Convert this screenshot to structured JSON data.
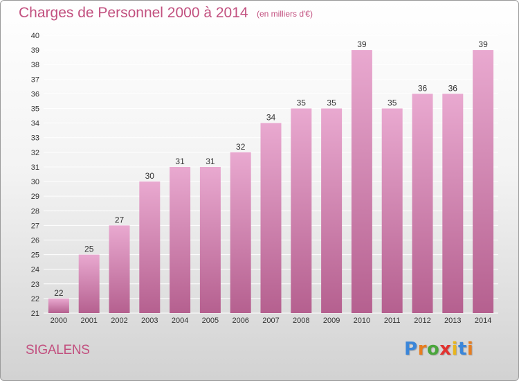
{
  "header": {
    "title": "Charges de Personnel 2000 à 2014",
    "subtitle": "(en milliers d'€)"
  },
  "footer": {
    "place": "SIGALENS",
    "logo": {
      "text": "Proxiti",
      "letter_colors": [
        "#3b86d9",
        "#e87d1e",
        "#4aa63c",
        "#e2322f",
        "#e8b51e",
        "#3b86d9",
        "#e87d1e"
      ]
    }
  },
  "colors": {
    "accent": "#c2507f",
    "bar_top": "#e9a9d0",
    "bar_bottom": "#b5608f",
    "grid": "#ffffff",
    "axis_text": "#333333"
  },
  "chart_data": {
    "type": "bar",
    "categories": [
      "2000",
      "2001",
      "2002",
      "2003",
      "2004",
      "2005",
      "2006",
      "2007",
      "2008",
      "2009",
      "2010",
      "2011",
      "2012",
      "2013",
      "2014"
    ],
    "values": [
      22,
      25,
      27,
      30,
      31,
      31,
      32,
      34,
      35,
      35,
      39,
      35,
      36,
      36,
      39
    ],
    "data_labels": [
      "22",
      "25",
      "27",
      "30",
      "31",
      "31",
      "32",
      "34",
      "35",
      "35",
      "39",
      "35",
      "36",
      "36",
      "39"
    ],
    "title": "Charges de Personnel 2000 à 2014",
    "subtitle": "(en milliers d'€)",
    "xlabel": "",
    "ylabel": "",
    "ylim": [
      21,
      40
    ],
    "yticks": [
      21,
      22,
      23,
      24,
      25,
      26,
      27,
      28,
      29,
      30,
      31,
      32,
      33,
      34,
      35,
      36,
      37,
      38,
      39,
      40
    ],
    "grid": true,
    "legend": "none"
  }
}
